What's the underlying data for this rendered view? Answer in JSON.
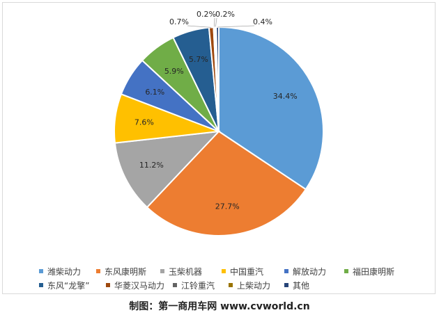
{
  "chart_data": {
    "type": "pie",
    "title": "",
    "slices": [
      {
        "name": "潍柴动力",
        "value": 34.4,
        "label": "34.4%",
        "color": "#5B9BD5"
      },
      {
        "name": "东风康明斯",
        "value": 27.7,
        "label": "27.7%",
        "color": "#ED7D31"
      },
      {
        "name": "玉柴机器",
        "value": 11.2,
        "label": "11.2%",
        "color": "#A5A5A5"
      },
      {
        "name": "中国重汽",
        "value": 7.6,
        "label": "7.6%",
        "color": "#FFC000"
      },
      {
        "name": "解放动力",
        "value": 6.1,
        "label": "6.1%",
        "color": "#4472C4"
      },
      {
        "name": "福田康明斯",
        "value": 5.9,
        "label": "5.9%",
        "color": "#70AD47"
      },
      {
        "name": "东风“龙擎”",
        "value": 5.7,
        "label": "5.7%",
        "color": "#255E91"
      },
      {
        "name": "华菱汉马动力",
        "value": 0.7,
        "label": "0.7%",
        "color": "#9E480E"
      },
      {
        "name": "江铃重汽",
        "value": 0.2,
        "label": "0.2%",
        "color": "#636363"
      },
      {
        "name": "上柴动力",
        "value": 0.2,
        "label": "0.2%",
        "color": "#997300"
      },
      {
        "name": "其他",
        "value": 0.4,
        "label": "0.4%",
        "color": "#264478"
      }
    ],
    "legend_position": "bottom",
    "start_angle_deg": 0,
    "direction": "clockwise"
  },
  "legend_rows": [
    [
      0,
      1,
      2,
      3,
      4,
      5
    ],
    [
      6,
      7,
      8,
      9,
      10
    ]
  ],
  "caption": "制图：第一商用车网 www.cvworld.cn"
}
